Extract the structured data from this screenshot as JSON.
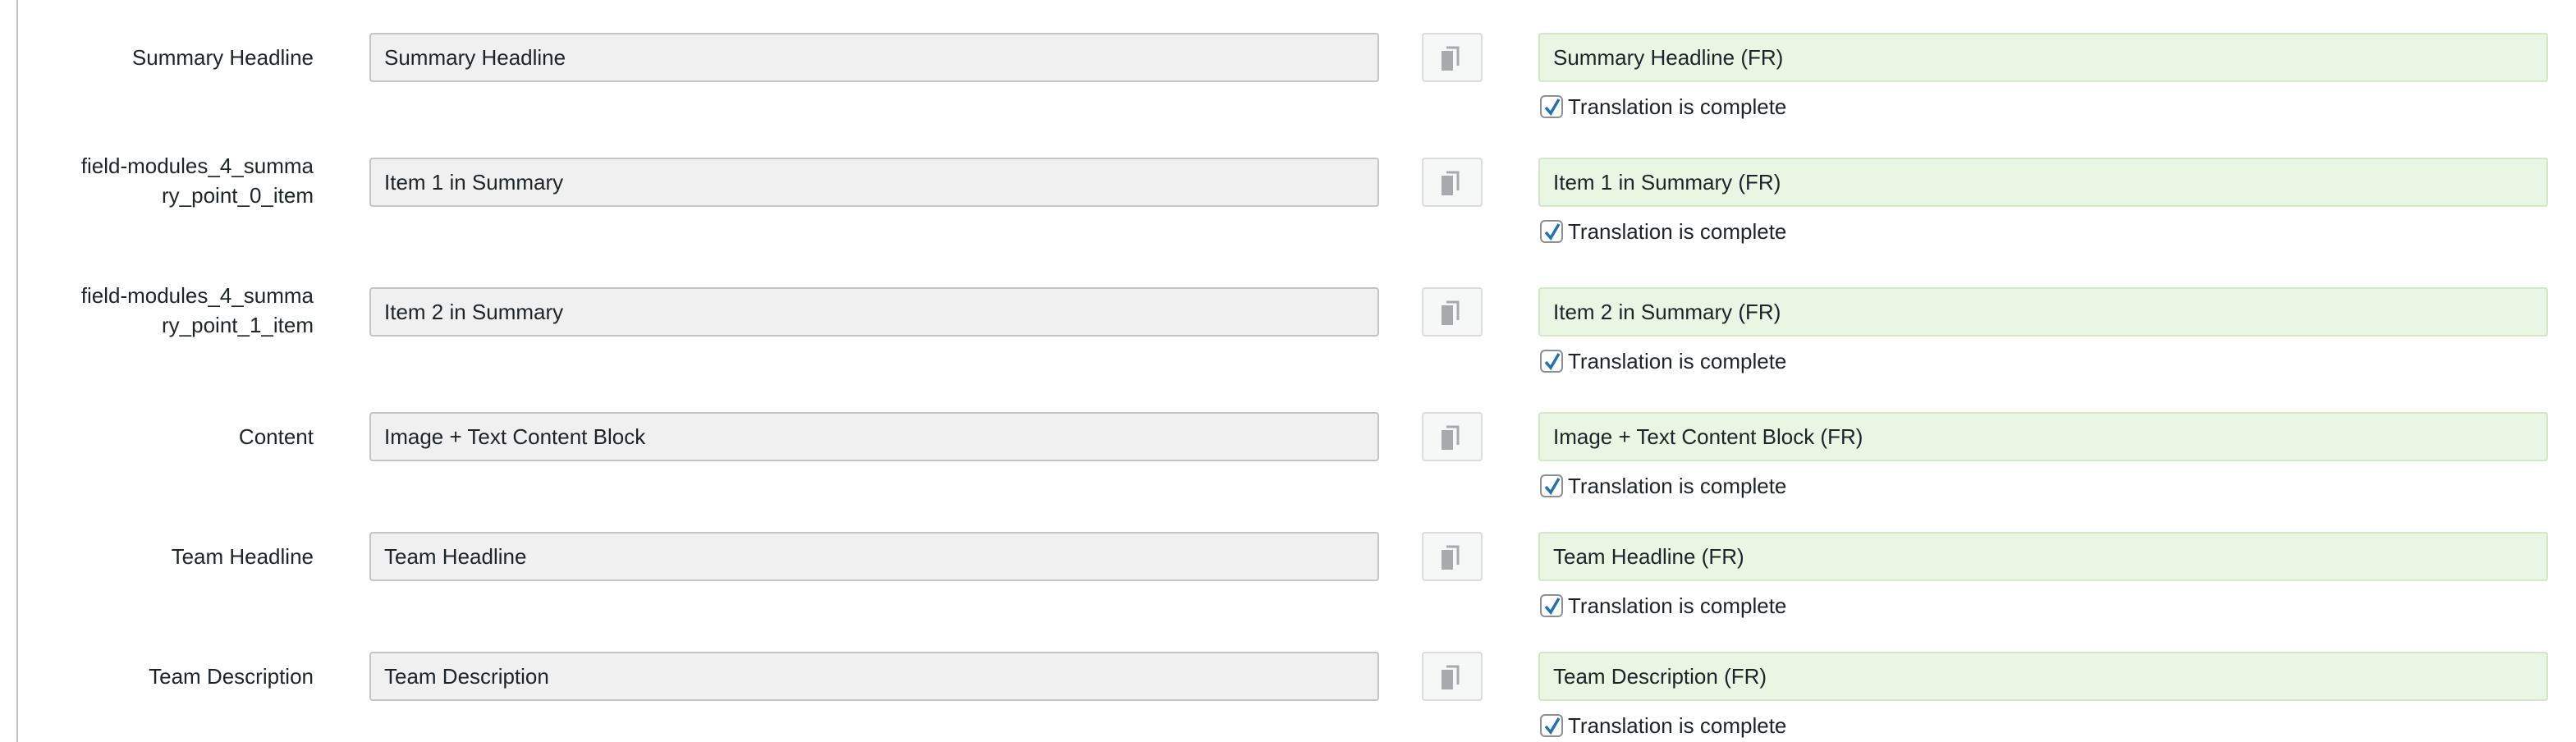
{
  "accent_color": "#2271b1",
  "target_bg_color": "#eaf6e4",
  "copy_icon": "copy-icon",
  "fields": [
    {
      "label": "Summary Headline",
      "source": "Summary Headline",
      "translation": "Summary Headline (FR)",
      "complete_label": "Translation is complete",
      "complete": true
    },
    {
      "label": "field-modules_4_summa ry_point_0_item",
      "label_lines": [
        "field-modules_4_summa",
        "ry_point_0_item"
      ],
      "source": "Item 1 in Summary",
      "translation": "Item 1 in Summary (FR)",
      "complete_label": "Translation is complete",
      "complete": true
    },
    {
      "label": "field-modules_4_summa ry_point_1_item",
      "label_lines": [
        "field-modules_4_summa",
        "ry_point_1_item"
      ],
      "source": "Item 2 in Summary",
      "translation": "Item 2 in Summary (FR)",
      "complete_label": "Translation is complete",
      "complete": true
    },
    {
      "label": "Content",
      "source": "Image + Text Content Block",
      "translation": "Image + Text Content Block (FR)",
      "complete_label": "Translation is complete",
      "complete": true
    },
    {
      "label": "Team Headline",
      "source": "Team Headline",
      "translation": "Team Headline (FR)",
      "complete_label": "Translation is complete",
      "complete": true
    },
    {
      "label": "Team Description",
      "source": "Team Description",
      "translation": "Team Description (FR)",
      "complete_label": "Translation is complete",
      "complete": true
    }
  ]
}
